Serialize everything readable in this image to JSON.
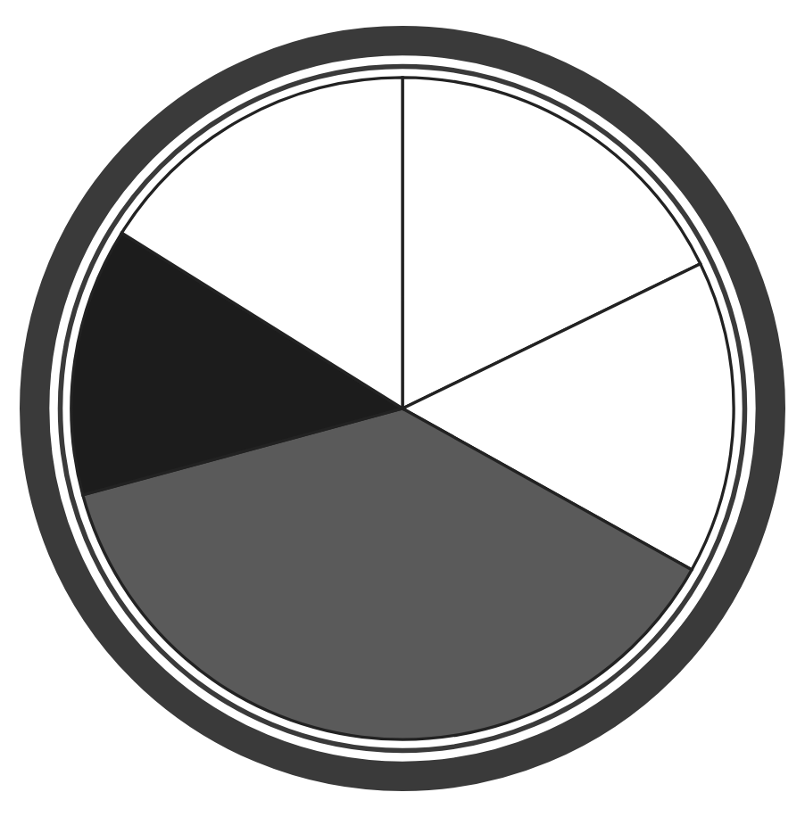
{
  "chart_data": {
    "type": "pie",
    "categories": [
      null,
      null,
      null,
      null,
      null
    ],
    "values": [
      17.8,
      15.3,
      37.7,
      13.1,
      16.1
    ],
    "colors": [
      "#ffffff",
      "#ffffff",
      "#5a5a5a",
      "#1c1c1c",
      "#ffffff"
    ]
  }
}
